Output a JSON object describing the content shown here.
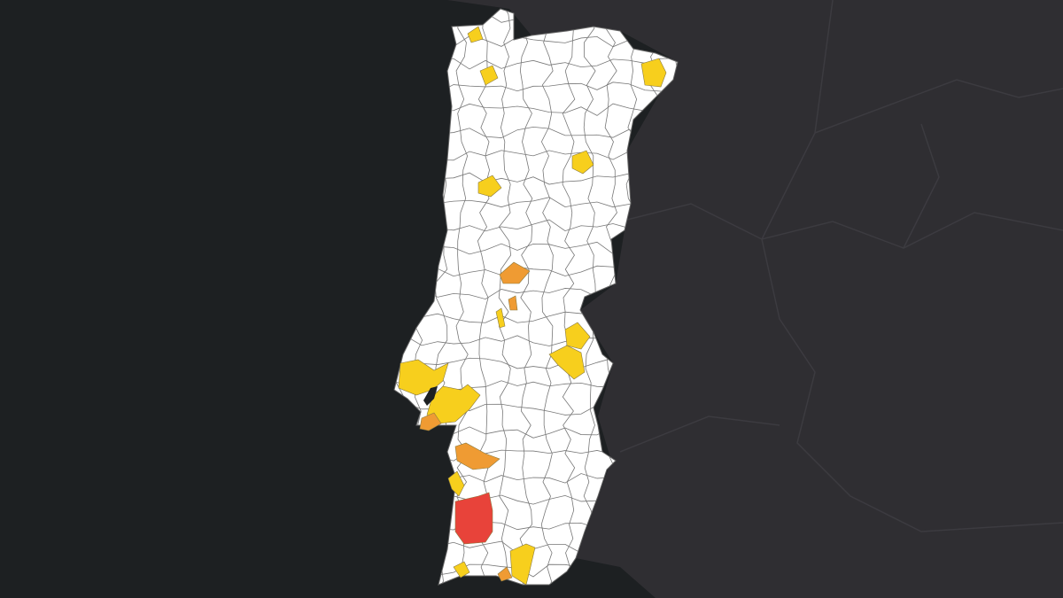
{
  "map": {
    "colors": {
      "ocean": "#1d2022",
      "spain": "#2f2e32",
      "spain_border": "#3b3a3f",
      "municipality_fill": "#ffffff",
      "municipality_border": "#555555",
      "low": "#f7cf1d",
      "medium": "#ef9b33",
      "high": "#e8433a"
    },
    "regions": [
      {
        "name": "north-coast-yellow",
        "level": "low"
      },
      {
        "name": "minho-yellow",
        "level": "low"
      },
      {
        "name": "braganca-yellow",
        "level": "low"
      },
      {
        "name": "vila-real-yellow",
        "level": "low"
      },
      {
        "name": "porto-area-yellow",
        "level": "low"
      },
      {
        "name": "coimbra-orange",
        "level": "medium"
      },
      {
        "name": "central-small-orange",
        "level": "medium"
      },
      {
        "name": "central-small-yellow",
        "level": "low"
      },
      {
        "name": "castelo-branco-yellow-1",
        "level": "low"
      },
      {
        "name": "castelo-branco-yellow-2",
        "level": "low"
      },
      {
        "name": "lisbon-yellow",
        "level": "low"
      },
      {
        "name": "setubal-yellow",
        "level": "low"
      },
      {
        "name": "setubal-orange",
        "level": "medium"
      },
      {
        "name": "alcacer-orange",
        "level": "medium"
      },
      {
        "name": "sines-yellow",
        "level": "low"
      },
      {
        "name": "odemira-red",
        "level": "high"
      },
      {
        "name": "algarve-west-yellow",
        "level": "low"
      },
      {
        "name": "algarve-central-yellow",
        "level": "low"
      },
      {
        "name": "algarve-orange",
        "level": "medium"
      }
    ]
  }
}
